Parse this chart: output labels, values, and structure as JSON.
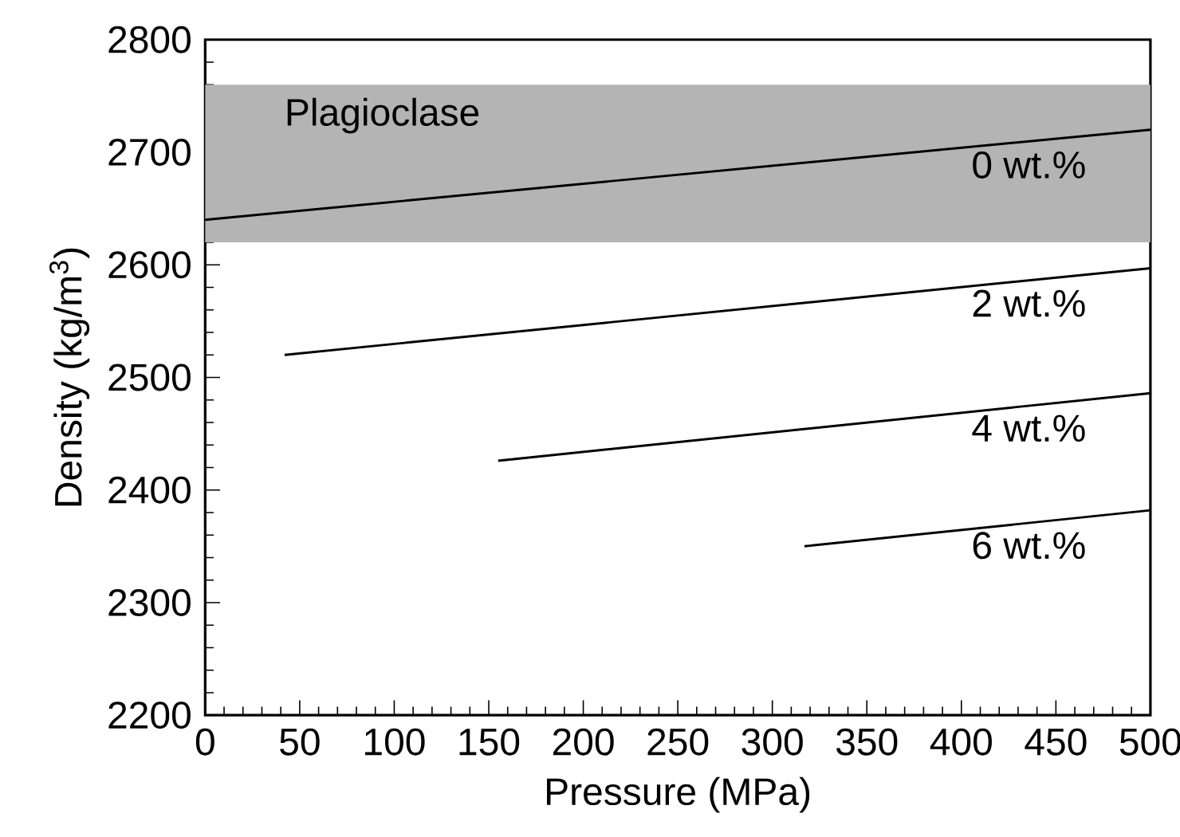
{
  "chart_data": {
    "type": "line",
    "xlabel": "Pressure (MPa)",
    "ylabel": "Density (kg/m$^{3}$)",
    "xlim": [
      0,
      500
    ],
    "ylim": [
      2200,
      2800
    ],
    "xticks": [
      0,
      50,
      100,
      150,
      200,
      250,
      300,
      350,
      400,
      450,
      500
    ],
    "yticks": [
      2200,
      2300,
      2400,
      2500,
      2600,
      2700,
      2800
    ],
    "grid": false,
    "legend": false,
    "marker": "none",
    "line_style": "solid",
    "bands": [
      {
        "axis": "y",
        "from": 2620,
        "to": 2760,
        "label": "Plagioclase",
        "color": "#b4b4b4"
      }
    ],
    "series": [
      {
        "name": "0 wt.%",
        "color": "#000000",
        "x": [
          0,
          500
        ],
        "values": [
          2640,
          2720
        ]
      },
      {
        "name": "2 wt.%",
        "color": "#000000",
        "x": [
          42,
          500
        ],
        "values": [
          2520,
          2597
        ]
      },
      {
        "name": "4 wt.%",
        "color": "#000000",
        "x": [
          155,
          500
        ],
        "values": [
          2426,
          2486
        ]
      },
      {
        "name": "6 wt.%",
        "color": "#000000",
        "x": [
          317,
          500
        ],
        "values": [
          2350,
          2382
        ]
      }
    ]
  }
}
